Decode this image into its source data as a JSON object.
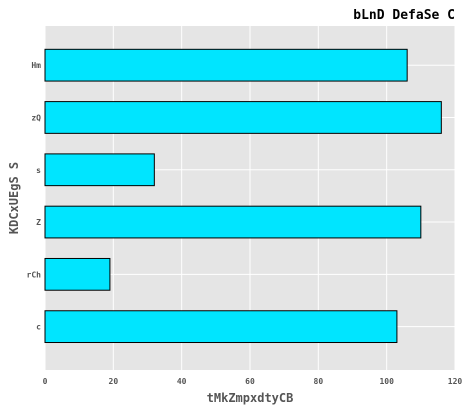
{
  "chart_data": {
    "type": "bar",
    "orientation": "horizontal",
    "title": "bLnD DefaSe C",
    "xlabel": "tMkZmpxdtyCB",
    "ylabel": "KDCxUEgS S",
    "categories": [
      "Hm",
      "zQ",
      "s",
      "Z",
      "rCh",
      "c"
    ],
    "values": [
      106,
      116,
      32,
      110,
      19,
      103
    ],
    "xlim": [
      0,
      120
    ],
    "xticks": [
      "0",
      "20",
      "40",
      "60",
      "80",
      "100",
      "120"
    ],
    "grid": true,
    "bar_color": "#00e5ff",
    "bar_edge_color": "#000000",
    "plot_background": "#e5e5e5",
    "grid_color": "#ffffff"
  }
}
